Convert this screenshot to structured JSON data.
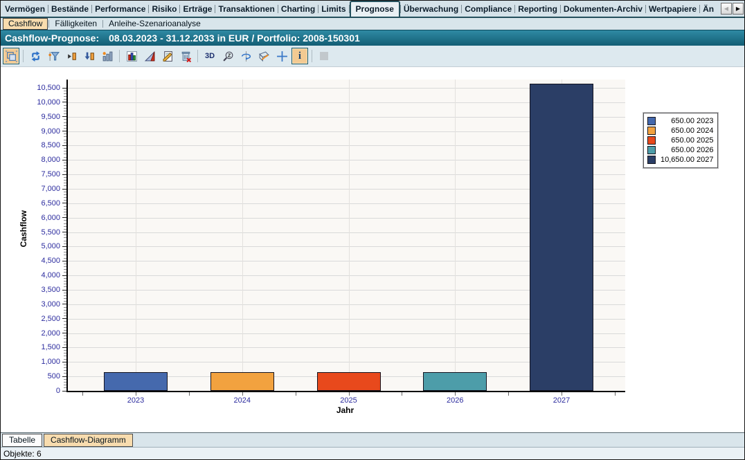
{
  "tabs": {
    "items": [
      "Vermögen",
      "Bestände",
      "Performance",
      "Risiko",
      "Erträge",
      "Transaktionen",
      "Charting",
      "Limits",
      "Prognose",
      "Überwachung",
      "Compliance",
      "Reporting",
      "Dokumenten-Archiv",
      "Wertpapiere",
      "Än"
    ],
    "selected": "Prognose",
    "scroll_left": "◀",
    "scroll_right": "▶"
  },
  "subtabs": {
    "items": [
      "Cashflow",
      "Fälligkeiten",
      "Anleihe-Szenarioanalyse"
    ],
    "selected": "Cashflow"
  },
  "header": {
    "label": "Cashflow-Prognose:",
    "detail": "08.03.2023 - 31.12.2033 in EUR / Portfolio: 2008-150301"
  },
  "toolbar": {
    "buttons": [
      {
        "icon": "fit-chart-icon",
        "selected": true
      },
      {
        "sep": true
      },
      {
        "icon": "refresh-icon"
      },
      {
        "icon": "filter-icon"
      },
      {
        "icon": "expand-column-icon"
      },
      {
        "icon": "insert-column-icon"
      },
      {
        "icon": "chart-statistics-icon"
      },
      {
        "sep": true
      },
      {
        "icon": "bar-chart-icon"
      },
      {
        "icon": "chart-type-icon"
      },
      {
        "icon": "edit-notes-icon"
      },
      {
        "icon": "delete-icon"
      },
      {
        "sep": true
      },
      {
        "icon": "3d-icon",
        "label": "3D"
      },
      {
        "icon": "zoom-icon"
      },
      {
        "icon": "rotate-icon"
      },
      {
        "icon": "perspective-icon"
      },
      {
        "icon": "crosshair-icon"
      },
      {
        "icon": "info-icon",
        "selected": true
      },
      {
        "sep": true
      },
      {
        "icon": "placeholder-icon",
        "disabled": true
      }
    ]
  },
  "chart_data": {
    "type": "bar",
    "title": "",
    "xlabel": "Jahr",
    "ylabel": "Cashflow",
    "categories": [
      "2023",
      "2024",
      "2025",
      "2026",
      "2027"
    ],
    "values": [
      650,
      650,
      650,
      650,
      10650
    ],
    "colors": [
      "#4569ad",
      "#f2a23f",
      "#e8491c",
      "#4d9da9",
      "#2b3e66"
    ],
    "legend_labels": [
      "650.00 2023",
      "650.00 2024",
      "650.00 2025",
      "650.00 2026",
      "10,650.00 2027"
    ],
    "ylim": [
      0,
      10500
    ],
    "ytick_step": 500,
    "yminor_step": 100,
    "grid": true,
    "legend_position": "right"
  },
  "bottom_tabs": {
    "items": [
      "Tabelle",
      "Cashflow-Diagramm"
    ],
    "selected": "Cashflow-Diagramm"
  },
  "statusbar": {
    "text": "Objekte: 6"
  }
}
